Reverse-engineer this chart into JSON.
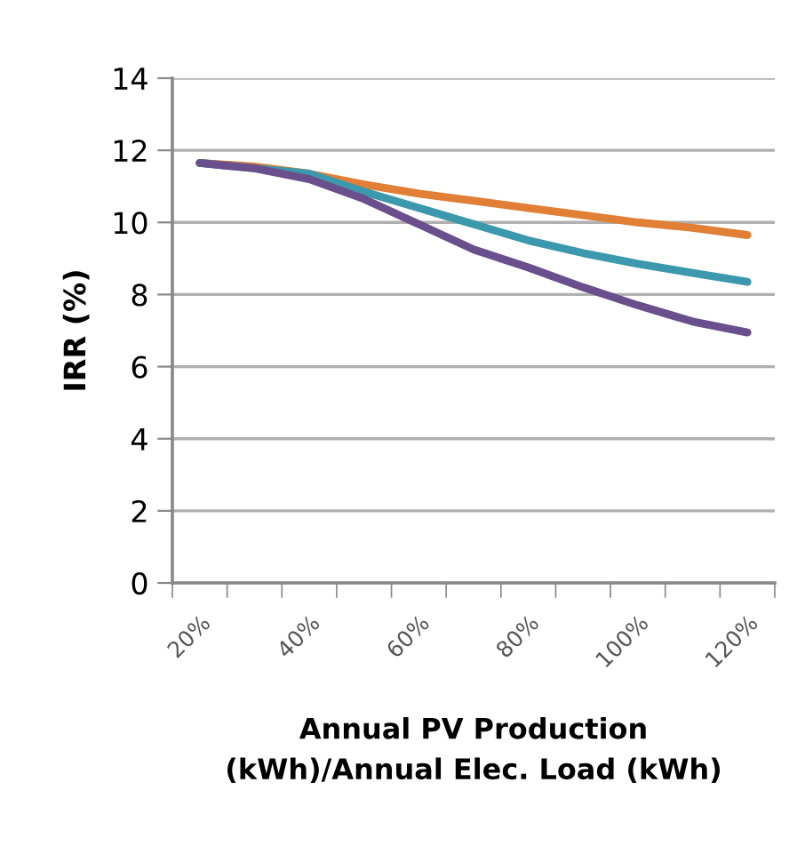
{
  "chart_data": {
    "type": "line",
    "xlabel": "Annual PV Production\n(kWh)/Annual Elec. Load (kWh)",
    "ylabel": "IRR (%)",
    "categories": [
      "20%",
      null,
      "40%",
      null,
      "60%",
      null,
      "80%",
      null,
      "100%",
      null,
      "120%"
    ],
    "series": [
      {
        "color": "#e07f35",
        "values": [
          11.65,
          11.55,
          11.35,
          11.05,
          10.8,
          10.6,
          10.4,
          10.2,
          10.0,
          9.85,
          9.65
        ]
      },
      {
        "color": "#3c98ad",
        "values": [
          11.65,
          11.5,
          11.35,
          10.85,
          10.4,
          9.95,
          9.5,
          9.15,
          8.85,
          8.6,
          8.35
        ]
      },
      {
        "color": "#6a4f8d",
        "values": [
          11.65,
          11.5,
          11.2,
          10.65,
          9.95,
          9.25,
          8.75,
          8.2,
          7.7,
          7.25,
          6.95
        ]
      }
    ],
    "ylim": [
      0,
      14
    ],
    "yticks": [
      0,
      2,
      4,
      6,
      8,
      10,
      12,
      14
    ],
    "grid": "y",
    "marker": "none",
    "line_style": "solid"
  }
}
